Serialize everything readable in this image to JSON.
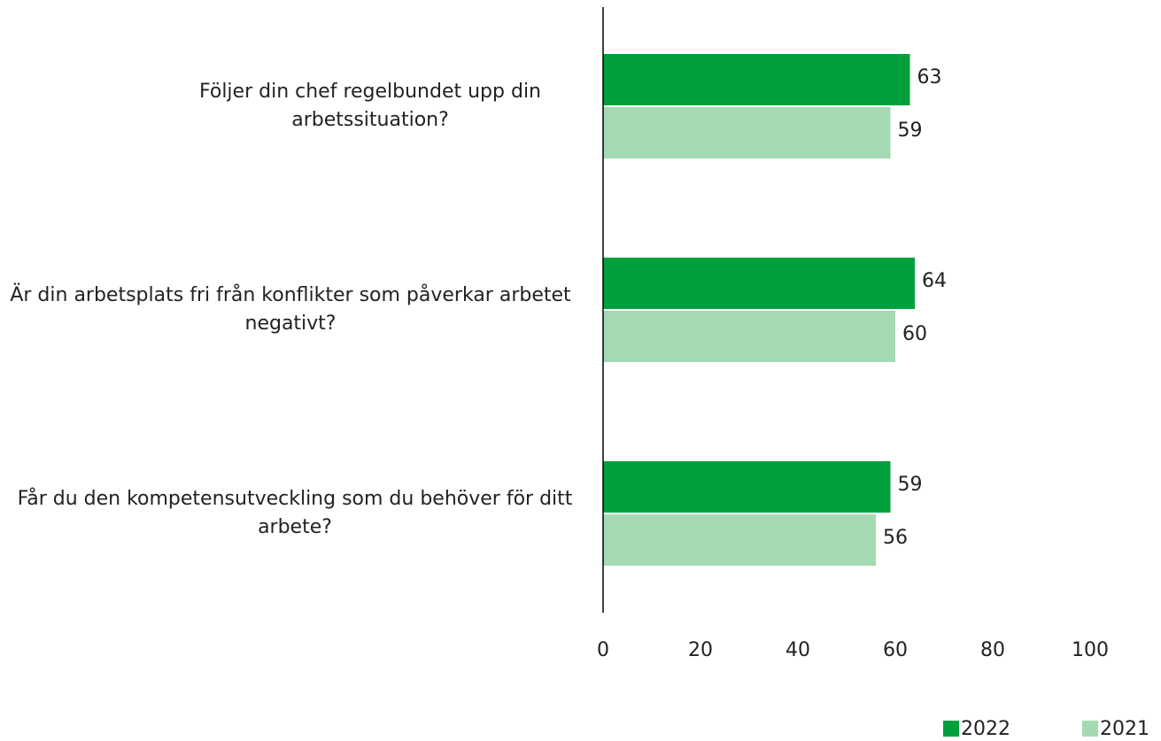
{
  "chart_data": {
    "type": "hbar",
    "categories": [
      "Följer din chef regelbundet upp din arbetssituation?",
      "Är din arbetsplats fri från konflikter som påverkar arbetet negativt?",
      "Får du den kompetensutveckling som du behöver för ditt arbete?"
    ],
    "series": [
      {
        "name": "2022",
        "color": "#00a03c",
        "values": [
          63,
          64,
          59
        ]
      },
      {
        "name": "2021",
        "color": "#a3dab4",
        "values": [
          59,
          60,
          56
        ]
      }
    ],
    "xlim": [
      0,
      100
    ],
    "xticks": [
      0,
      20,
      40,
      60,
      80,
      100
    ],
    "grid": false,
    "legend": "bottom-right"
  }
}
